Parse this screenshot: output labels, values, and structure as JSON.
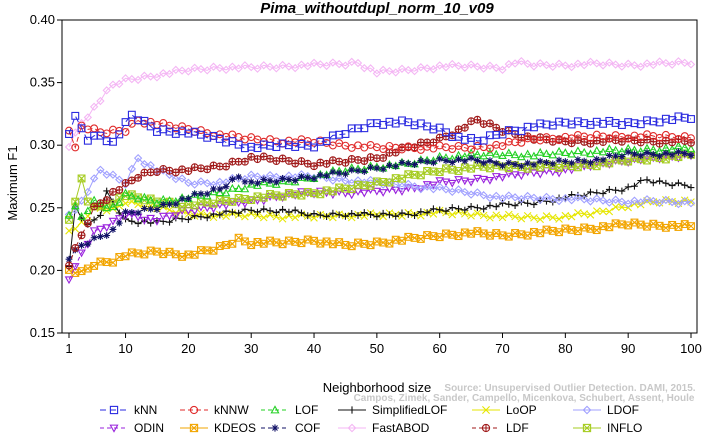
{
  "chart_data": {
    "type": "line",
    "title": "Pima_withoutdupl_norm_10_v09",
    "xlabel": "Neighborhood size",
    "ylabel": "Maximum F1",
    "xlim": [
      1,
      100
    ],
    "ylim": [
      0.15,
      0.4
    ],
    "x_ticks": [
      1,
      10,
      20,
      30,
      40,
      50,
      60,
      70,
      80,
      90,
      100
    ],
    "y_ticks": [
      "0.15",
      "0.20",
      "0.25",
      "0.30",
      "0.35",
      "0.40"
    ],
    "grid": false,
    "legend_position": "bottom",
    "credit": [
      "Source: Unsupervised Outlier Detection. DAMI, 2015.",
      "Campos, Zimek, Sander, Campello, Micenkova, Schubert, Assent, Houle"
    ],
    "series": [
      {
        "name": "kNN",
        "color": "#2a2ae0",
        "marker": "square",
        "dash": "6,4",
        "anchors": [
          [
            1,
            0.31
          ],
          [
            2,
            0.322
          ],
          [
            4,
            0.305
          ],
          [
            6,
            0.308
          ],
          [
            8,
            0.302
          ],
          [
            11,
            0.324
          ],
          [
            15,
            0.312
          ],
          [
            20,
            0.31
          ],
          [
            25,
            0.305
          ],
          [
            30,
            0.298
          ],
          [
            35,
            0.3
          ],
          [
            40,
            0.3
          ],
          [
            43,
            0.306
          ],
          [
            46,
            0.312
          ],
          [
            50,
            0.318
          ],
          [
            55,
            0.318
          ],
          [
            60,
            0.313
          ],
          [
            63,
            0.306
          ],
          [
            66,
            0.303
          ],
          [
            70,
            0.31
          ],
          [
            75,
            0.315
          ],
          [
            80,
            0.318
          ],
          [
            85,
            0.318
          ],
          [
            90,
            0.317
          ],
          [
            95,
            0.32
          ],
          [
            100,
            0.322
          ]
        ]
      },
      {
        "name": "kNNW",
        "color": "#e02a2a",
        "marker": "circle",
        "dash": "5,3",
        "anchors": [
          [
            1,
            0.312
          ],
          [
            2,
            0.3
          ],
          [
            3,
            0.315
          ],
          [
            6,
            0.31
          ],
          [
            10,
            0.312
          ],
          [
            12,
            0.32
          ],
          [
            16,
            0.316
          ],
          [
            20,
            0.313
          ],
          [
            25,
            0.308
          ],
          [
            30,
            0.305
          ],
          [
            35,
            0.303
          ],
          [
            40,
            0.303
          ],
          [
            45,
            0.3
          ],
          [
            50,
            0.298
          ],
          [
            55,
            0.298
          ],
          [
            60,
            0.298
          ],
          [
            65,
            0.298
          ],
          [
            70,
            0.3
          ],
          [
            75,
            0.305
          ],
          [
            80,
            0.306
          ],
          [
            85,
            0.307
          ],
          [
            90,
            0.307
          ],
          [
            95,
            0.307
          ],
          [
            100,
            0.306
          ]
        ]
      },
      {
        "name": "LOF",
        "color": "#22d022",
        "marker": "triangle-up",
        "dash": "4,3",
        "anchors": [
          [
            1,
            0.245
          ],
          [
            2,
            0.25
          ],
          [
            3,
            0.243
          ],
          [
            5,
            0.255
          ],
          [
            8,
            0.25
          ],
          [
            10,
            0.26
          ],
          [
            15,
            0.255
          ],
          [
            20,
            0.258
          ],
          [
            25,
            0.262
          ],
          [
            30,
            0.268
          ],
          [
            35,
            0.27
          ],
          [
            40,
            0.275
          ],
          [
            45,
            0.28
          ],
          [
            50,
            0.283
          ],
          [
            55,
            0.285
          ],
          [
            60,
            0.29
          ],
          [
            65,
            0.292
          ],
          [
            70,
            0.293
          ],
          [
            75,
            0.292
          ],
          [
            80,
            0.294
          ],
          [
            85,
            0.295
          ],
          [
            90,
            0.296
          ],
          [
            95,
            0.297
          ],
          [
            100,
            0.298
          ]
        ]
      },
      {
        "name": "SimplifiedLOF",
        "color": "#111111",
        "marker": "plus",
        "dash": "",
        "anchors": [
          [
            1,
            0.205
          ],
          [
            2,
            0.25
          ],
          [
            4,
            0.235
          ],
          [
            6,
            0.245
          ],
          [
            7,
            0.262
          ],
          [
            10,
            0.24
          ],
          [
            15,
            0.238
          ],
          [
            20,
            0.242
          ],
          [
            25,
            0.245
          ],
          [
            30,
            0.248
          ],
          [
            35,
            0.248
          ],
          [
            40,
            0.244
          ],
          [
            45,
            0.245
          ],
          [
            50,
            0.244
          ],
          [
            55,
            0.245
          ],
          [
            60,
            0.248
          ],
          [
            65,
            0.25
          ],
          [
            70,
            0.252
          ],
          [
            75,
            0.254
          ],
          [
            80,
            0.258
          ],
          [
            85,
            0.262
          ],
          [
            90,
            0.266
          ],
          [
            93,
            0.272
          ],
          [
            95,
            0.27
          ],
          [
            100,
            0.268
          ]
        ]
      },
      {
        "name": "LoOP",
        "color": "#e6e600",
        "marker": "x",
        "dash": "",
        "anchors": [
          [
            1,
            0.232
          ],
          [
            3,
            0.238
          ],
          [
            5,
            0.25
          ],
          [
            8,
            0.248
          ],
          [
            10,
            0.255
          ],
          [
            15,
            0.25
          ],
          [
            20,
            0.245
          ],
          [
            25,
            0.244
          ],
          [
            30,
            0.244
          ],
          [
            35,
            0.243
          ],
          [
            40,
            0.243
          ],
          [
            45,
            0.244
          ],
          [
            50,
            0.244
          ],
          [
            55,
            0.245
          ],
          [
            60,
            0.246
          ],
          [
            65,
            0.245
          ],
          [
            70,
            0.243
          ],
          [
            75,
            0.242
          ],
          [
            80,
            0.243
          ],
          [
            85,
            0.246
          ],
          [
            90,
            0.252
          ],
          [
            95,
            0.255
          ],
          [
            100,
            0.255
          ]
        ]
      },
      {
        "name": "LDOF",
        "color": "#a0a0ff",
        "marker": "diamond",
        "dash": "",
        "anchors": [
          [
            1,
            0.245
          ],
          [
            3,
            0.255
          ],
          [
            6,
            0.28
          ],
          [
            10,
            0.27
          ],
          [
            12,
            0.29
          ],
          [
            15,
            0.28
          ],
          [
            20,
            0.27
          ],
          [
            25,
            0.27
          ],
          [
            30,
            0.275
          ],
          [
            35,
            0.275
          ],
          [
            40,
            0.275
          ],
          [
            45,
            0.272
          ],
          [
            50,
            0.27
          ],
          [
            55,
            0.268
          ],
          [
            60,
            0.265
          ],
          [
            65,
            0.262
          ],
          [
            70,
            0.258
          ],
          [
            75,
            0.258
          ],
          [
            80,
            0.257
          ],
          [
            85,
            0.256
          ],
          [
            90,
            0.255
          ],
          [
            95,
            0.255
          ],
          [
            100,
            0.254
          ]
        ]
      },
      {
        "name": "ODIN",
        "color": "#9922dd",
        "marker": "triangle-down",
        "dash": "4,3",
        "anchors": [
          [
            1,
            0.193
          ],
          [
            2,
            0.205
          ],
          [
            5,
            0.23
          ],
          [
            8,
            0.238
          ],
          [
            10,
            0.245
          ],
          [
            15,
            0.24
          ],
          [
            20,
            0.248
          ],
          [
            25,
            0.252
          ],
          [
            30,
            0.255
          ],
          [
            35,
            0.26
          ],
          [
            40,
            0.262
          ],
          [
            45,
            0.262
          ],
          [
            50,
            0.263
          ],
          [
            55,
            0.265
          ],
          [
            60,
            0.27
          ],
          [
            65,
            0.272
          ],
          [
            70,
            0.275
          ],
          [
            75,
            0.278
          ],
          [
            80,
            0.28
          ],
          [
            85,
            0.285
          ],
          [
            90,
            0.288
          ],
          [
            95,
            0.29
          ],
          [
            100,
            0.292
          ]
        ]
      },
      {
        "name": "KDEOS",
        "color": "#f2a500",
        "marker": "square-x",
        "dash": "",
        "anchors": [
          [
            1,
            0.2
          ],
          [
            3,
            0.198
          ],
          [
            5,
            0.205
          ],
          [
            8,
            0.208
          ],
          [
            10,
            0.212
          ],
          [
            15,
            0.215
          ],
          [
            20,
            0.212
          ],
          [
            25,
            0.218
          ],
          [
            28,
            0.225
          ],
          [
            30,
            0.222
          ],
          [
            35,
            0.222
          ],
          [
            40,
            0.224
          ],
          [
            45,
            0.22
          ],
          [
            50,
            0.222
          ],
          [
            55,
            0.225
          ],
          [
            60,
            0.228
          ],
          [
            65,
            0.23
          ],
          [
            70,
            0.228
          ],
          [
            75,
            0.23
          ],
          [
            80,
            0.232
          ],
          [
            85,
            0.234
          ],
          [
            90,
            0.237
          ],
          [
            95,
            0.236
          ],
          [
            100,
            0.235
          ]
        ]
      },
      {
        "name": "COF",
        "color": "#101066",
        "marker": "asterisk",
        "dash": "4,3",
        "anchors": [
          [
            1,
            0.21
          ],
          [
            3,
            0.22
          ],
          [
            5,
            0.225
          ],
          [
            8,
            0.232
          ],
          [
            10,
            0.245
          ],
          [
            15,
            0.25
          ],
          [
            20,
            0.258
          ],
          [
            25,
            0.265
          ],
          [
            28,
            0.275
          ],
          [
            30,
            0.27
          ],
          [
            35,
            0.272
          ],
          [
            40,
            0.275
          ],
          [
            45,
            0.278
          ],
          [
            50,
            0.282
          ],
          [
            55,
            0.285
          ],
          [
            60,
            0.288
          ],
          [
            65,
            0.288
          ],
          [
            70,
            0.285
          ],
          [
            75,
            0.285
          ],
          [
            80,
            0.287
          ],
          [
            85,
            0.288
          ],
          [
            90,
            0.293
          ],
          [
            95,
            0.293
          ],
          [
            100,
            0.293
          ]
        ]
      },
      {
        "name": "FastABOD",
        "color": "#f4b6f4",
        "marker": "diamond",
        "dash": "",
        "anchors": [
          [
            1,
            0.3
          ],
          [
            3,
            0.318
          ],
          [
            5,
            0.33
          ],
          [
            8,
            0.348
          ],
          [
            10,
            0.352
          ],
          [
            15,
            0.356
          ],
          [
            20,
            0.36
          ],
          [
            25,
            0.362
          ],
          [
            30,
            0.362
          ],
          [
            35,
            0.363
          ],
          [
            40,
            0.364
          ],
          [
            45,
            0.365
          ],
          [
            47,
            0.366
          ],
          [
            50,
            0.358
          ],
          [
            55,
            0.36
          ],
          [
            60,
            0.363
          ],
          [
            65,
            0.363
          ],
          [
            70,
            0.362
          ],
          [
            72,
            0.366
          ],
          [
            75,
            0.364
          ],
          [
            80,
            0.364
          ],
          [
            85,
            0.365
          ],
          [
            90,
            0.364
          ],
          [
            95,
            0.365
          ],
          [
            100,
            0.366
          ]
        ]
      },
      {
        "name": "LDF",
        "color": "#a01a1a",
        "marker": "circle-plus",
        "dash": "4,3",
        "anchors": [
          [
            1,
            0.205
          ],
          [
            3,
            0.228
          ],
          [
            5,
            0.25
          ],
          [
            8,
            0.262
          ],
          [
            10,
            0.268
          ],
          [
            12,
            0.275
          ],
          [
            15,
            0.28
          ],
          [
            20,
            0.28
          ],
          [
            25,
            0.283
          ],
          [
            30,
            0.29
          ],
          [
            35,
            0.288
          ],
          [
            40,
            0.285
          ],
          [
            45,
            0.287
          ],
          [
            50,
            0.29
          ],
          [
            55,
            0.298
          ],
          [
            60,
            0.305
          ],
          [
            63,
            0.312
          ],
          [
            66,
            0.32
          ],
          [
            70,
            0.312
          ],
          [
            75,
            0.305
          ],
          [
            80,
            0.303
          ],
          [
            85,
            0.303
          ],
          [
            90,
            0.304
          ],
          [
            95,
            0.303
          ],
          [
            100,
            0.303
          ]
        ]
      },
      {
        "name": "INFLO",
        "color": "#a6cc22",
        "marker": "square-x",
        "dash": "",
        "anchors": [
          [
            1,
            0.24
          ],
          [
            3,
            0.272
          ],
          [
            4,
            0.255
          ],
          [
            6,
            0.25
          ],
          [
            8,
            0.255
          ],
          [
            10,
            0.26
          ],
          [
            15,
            0.255
          ],
          [
            20,
            0.252
          ],
          [
            25,
            0.255
          ],
          [
            30,
            0.258
          ],
          [
            35,
            0.26
          ],
          [
            40,
            0.262
          ],
          [
            45,
            0.265
          ],
          [
            50,
            0.27
          ],
          [
            55,
            0.275
          ],
          [
            60,
            0.28
          ],
          [
            65,
            0.282
          ],
          [
            70,
            0.283
          ],
          [
            75,
            0.283
          ],
          [
            80,
            0.283
          ],
          [
            85,
            0.285
          ],
          [
            90,
            0.288
          ],
          [
            95,
            0.29
          ],
          [
            100,
            0.292
          ]
        ]
      }
    ],
    "legend_rows": [
      [
        "kNN",
        "kNNW",
        "LOF",
        "SimplifiedLOF",
        "LoOP",
        "LDOF"
      ],
      [
        "ODIN",
        "KDEOS",
        "COF",
        "FastABOD",
        "LDF",
        "INFLO"
      ]
    ]
  }
}
